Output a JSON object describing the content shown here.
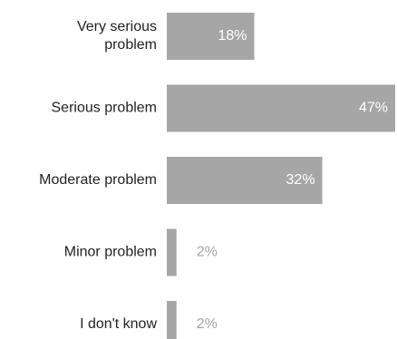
{
  "chart_data": {
    "type": "bar",
    "orientation": "horizontal",
    "categories": [
      [
        "Very serious",
        "problem"
      ],
      [
        "Serious problem"
      ],
      [
        "Moderate problem"
      ],
      [
        "Minor problem"
      ],
      [
        "I don't know"
      ]
    ],
    "values": [
      18,
      47,
      32,
      2,
      2
    ],
    "value_labels": [
      "18%",
      "47%",
      "32%",
      "2%",
      "2%"
    ],
    "title": "",
    "xlabel": "",
    "ylabel": "",
    "xlim": [
      0,
      47
    ],
    "grid": false,
    "legend": "none",
    "colors": {
      "bar": "#a6a6a6",
      "label_inside": "#ffffff",
      "label_outside": "#a6a6a6",
      "category_text": "#222222"
    }
  }
}
